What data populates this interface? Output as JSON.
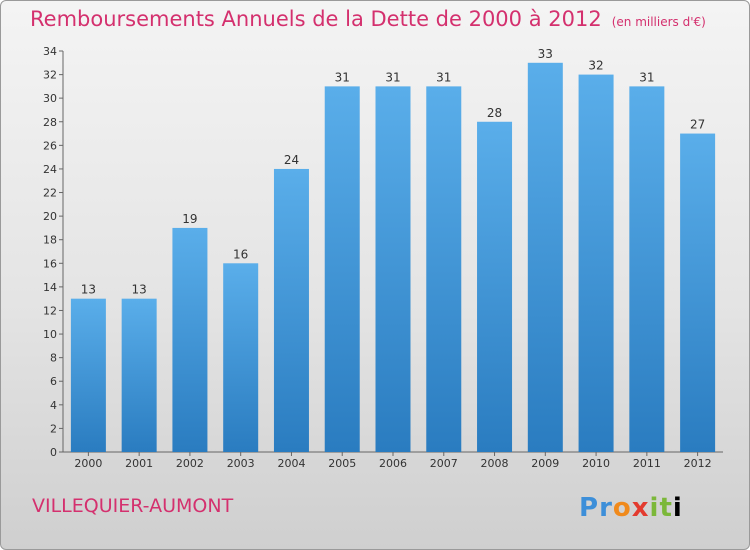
{
  "header": {
    "title": "Remboursements Annuels de la Dette de 2000 à 2012",
    "subtitle": "(en milliers d'€)"
  },
  "footer": {
    "commune": "VILLEQUIER-AUMONT",
    "logo_text": "Proxiti"
  },
  "colors": {
    "title": "#d4306e",
    "bar_light": "#5aaeea",
    "bar_dark": "#2a7cc0"
  },
  "chart_data": {
    "type": "bar",
    "title": "Remboursements Annuels de la Dette de 2000 à 2012",
    "subtitle": "(en milliers d'€)",
    "categories": [
      "2000",
      "2001",
      "2002",
      "2003",
      "2004",
      "2005",
      "2006",
      "2007",
      "2008",
      "2009",
      "2010",
      "2011",
      "2012"
    ],
    "values": [
      13,
      13,
      19,
      16,
      24,
      31,
      31,
      31,
      28,
      33,
      32,
      31,
      27
    ],
    "ylim": [
      0,
      34
    ],
    "yticks": [
      0,
      2,
      4,
      6,
      8,
      10,
      12,
      14,
      16,
      18,
      20,
      22,
      24,
      26,
      28,
      30,
      32,
      34
    ],
    "grid": false,
    "legend": "none"
  }
}
